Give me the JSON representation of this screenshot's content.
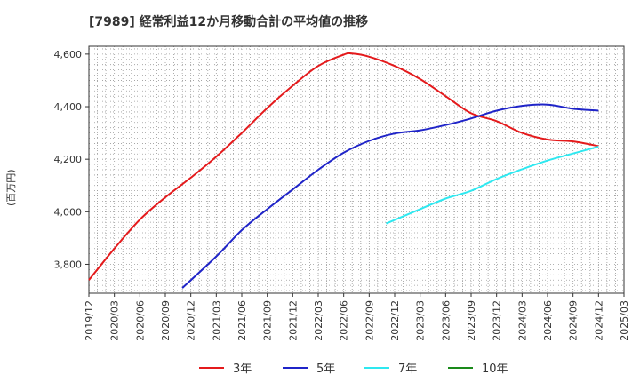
{
  "chart_data": {
    "type": "line",
    "title": "[7989]  経常利益12か月移動合計の平均値の推移",
    "ylabel": "(百万円)",
    "xlabel": "",
    "categories": [
      "2019/12",
      "2020/03",
      "2020/06",
      "2020/09",
      "2020/12",
      "2021/03",
      "2021/06",
      "2021/09",
      "2021/12",
      "2022/03",
      "2022/06",
      "2022/09",
      "2022/12",
      "2023/03",
      "2023/06",
      "2023/09",
      "2023/12",
      "2024/03",
      "2024/06",
      "2024/09",
      "2024/12",
      "2025/03"
    ],
    "ylim": [
      3690,
      4630
    ],
    "yticks": [
      3800,
      4000,
      4200,
      4400,
      4600
    ],
    "ytick_labels": [
      "3,800",
      "4,000",
      "4,200",
      "4,400",
      "4,600"
    ],
    "grid": true,
    "legend_position": "bottom",
    "series": [
      {
        "name": "3年",
        "color": "#e41a1c",
        "x": [
          "2019/12",
          "2020/03",
          "2020/06",
          "2020/09",
          "2020/12",
          "2021/03",
          "2021/06",
          "2021/09",
          "2021/12",
          "2022/03",
          "2022/06",
          "2022/07",
          "2022/09",
          "2022/12",
          "2023/03",
          "2023/06",
          "2023/09",
          "2023/12",
          "2024/03",
          "2024/06",
          "2024/09",
          "2024/12"
        ],
        "values": [
          3740,
          3860,
          3970,
          4055,
          4130,
          4210,
          4300,
          4395,
          4480,
          4555,
          4598,
          4602,
          4590,
          4555,
          4505,
          4440,
          4375,
          4345,
          4300,
          4275,
          4268,
          4250
        ]
      },
      {
        "name": "5年",
        "color": "#1f24c8",
        "x": [
          "2020/11",
          "2021/03",
          "2021/06",
          "2021/09",
          "2021/12",
          "2022/03",
          "2022/06",
          "2022/09",
          "2022/12",
          "2023/03",
          "2023/06",
          "2023/09",
          "2023/12",
          "2024/03",
          "2024/06",
          "2024/09",
          "2024/12"
        ],
        "values": [
          3710,
          3830,
          3930,
          4010,
          4085,
          4160,
          4225,
          4270,
          4298,
          4310,
          4330,
          4355,
          4385,
          4403,
          4408,
          4392,
          4385
        ]
      },
      {
        "name": "7年",
        "color": "#2ee8f0",
        "x": [
          "2022/11",
          "2023/03",
          "2023/06",
          "2023/09",
          "2023/12",
          "2024/03",
          "2024/06",
          "2024/09",
          "2024/12"
        ],
        "values": [
          3955,
          4010,
          4050,
          4080,
          4125,
          4162,
          4195,
          4222,
          4248
        ]
      },
      {
        "name": "10年",
        "color": "#1a8a1a",
        "x": [],
        "values": []
      }
    ]
  }
}
